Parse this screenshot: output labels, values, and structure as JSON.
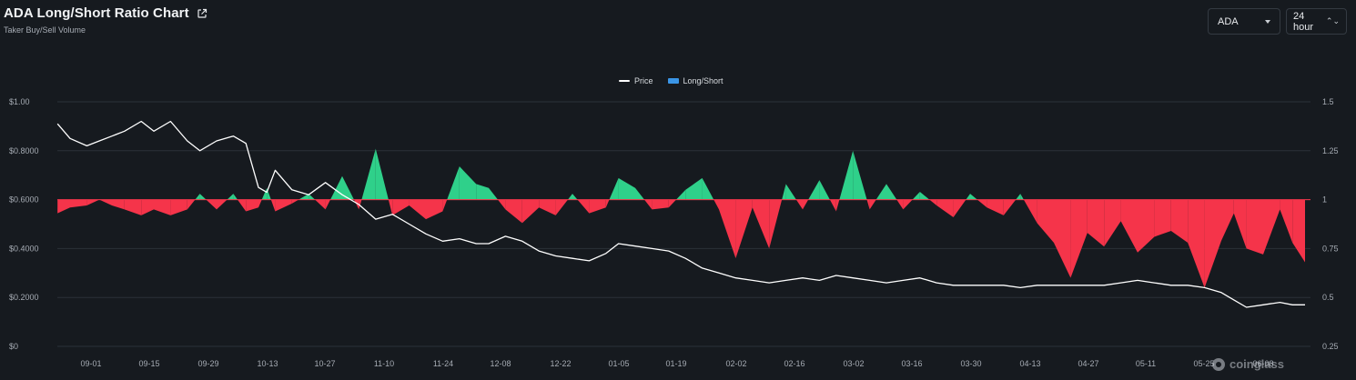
{
  "header": {
    "title": "ADA Long/Short Ratio Chart",
    "subtitle": "Taker Buy/Sell Volume",
    "external_link_icon": "external-link-icon"
  },
  "controls": {
    "coin_select": "ADA",
    "period_select": "24 hour"
  },
  "watermark": "coinglass",
  "colors": {
    "background": "#161a1f",
    "long": "#2fd08a",
    "short": "#f5344a",
    "price": "#ffffff",
    "legend_long_short": "#3a95e6",
    "grid": "#2b3138"
  },
  "chart_data": {
    "type": "area",
    "legend_position": "top-center",
    "grid": true,
    "categories": [
      "09-01",
      "09-15",
      "09-29",
      "10-13",
      "10-27",
      "11-10",
      "11-24",
      "12-08",
      "12-22",
      "01-05",
      "01-19",
      "02-02",
      "02-16",
      "03-02",
      "03-16",
      "03-30",
      "04-13",
      "04-27",
      "05-11",
      "05-25",
      "06-08"
    ],
    "y_left": {
      "ticks": [
        "$1.00",
        "$0.8000",
        "$0.6000",
        "$0.4000",
        "$0.2000",
        "$0"
      ],
      "tick_values": [
        1.0,
        0.8,
        0.6,
        0.4,
        0.2,
        0
      ],
      "range": [
        0,
        1.0
      ]
    },
    "y_right": {
      "ticks": [
        "1.5",
        "1.25",
        "1",
        "0.75",
        "0.5",
        "0.25"
      ],
      "tick_values": [
        1.5,
        1.25,
        1.0,
        0.75,
        0.5,
        0.25
      ],
      "range": [
        0.25,
        1.5
      ],
      "baseline": 1.0
    },
    "series": [
      {
        "name": "Price",
        "axis": "left",
        "type": "line",
        "points": [
          [
            "08-24",
            0.91
          ],
          [
            "08-27",
            0.85
          ],
          [
            "08-31",
            0.82
          ],
          [
            "09-03",
            0.84
          ],
          [
            "09-06",
            0.86
          ],
          [
            "09-09",
            0.88
          ],
          [
            "09-13",
            0.92
          ],
          [
            "09-16",
            0.88
          ],
          [
            "09-20",
            0.92
          ],
          [
            "09-24",
            0.84
          ],
          [
            "09-27",
            0.8
          ],
          [
            "10-01",
            0.84
          ],
          [
            "10-05",
            0.86
          ],
          [
            "10-08",
            0.83
          ],
          [
            "10-11",
            0.65
          ],
          [
            "10-13",
            0.63
          ],
          [
            "10-15",
            0.72
          ],
          [
            "10-19",
            0.64
          ],
          [
            "10-23",
            0.62
          ],
          [
            "10-27",
            0.67
          ],
          [
            "10-31",
            0.62
          ],
          [
            "11-04",
            0.58
          ],
          [
            "11-08",
            0.52
          ],
          [
            "11-12",
            0.54
          ],
          [
            "11-16",
            0.5
          ],
          [
            "11-20",
            0.46
          ],
          [
            "11-24",
            0.43
          ],
          [
            "11-28",
            0.44
          ],
          [
            "12-02",
            0.42
          ],
          [
            "12-05",
            0.42
          ],
          [
            "12-09",
            0.45
          ],
          [
            "12-13",
            0.43
          ],
          [
            "12-17",
            0.39
          ],
          [
            "12-21",
            0.37
          ],
          [
            "12-25",
            0.36
          ],
          [
            "12-29",
            0.35
          ],
          [
            "01-02",
            0.38
          ],
          [
            "01-05",
            0.42
          ],
          [
            "01-09",
            0.41
          ],
          [
            "01-13",
            0.4
          ],
          [
            "01-17",
            0.39
          ],
          [
            "01-21",
            0.36
          ],
          [
            "01-25",
            0.32
          ],
          [
            "01-29",
            0.3
          ],
          [
            "02-02",
            0.28
          ],
          [
            "02-06",
            0.27
          ],
          [
            "02-10",
            0.26
          ],
          [
            "02-14",
            0.27
          ],
          [
            "02-18",
            0.28
          ],
          [
            "02-22",
            0.27
          ],
          [
            "02-26",
            0.29
          ],
          [
            "03-02",
            0.28
          ],
          [
            "03-06",
            0.27
          ],
          [
            "03-10",
            0.26
          ],
          [
            "03-14",
            0.27
          ],
          [
            "03-18",
            0.28
          ],
          [
            "03-22",
            0.26
          ],
          [
            "03-26",
            0.25
          ],
          [
            "03-30",
            0.25
          ],
          [
            "04-03",
            0.25
          ],
          [
            "04-07",
            0.25
          ],
          [
            "04-11",
            0.24
          ],
          [
            "04-15",
            0.25
          ],
          [
            "04-19",
            0.25
          ],
          [
            "04-23",
            0.25
          ],
          [
            "04-27",
            0.25
          ],
          [
            "05-01",
            0.25
          ],
          [
            "05-05",
            0.26
          ],
          [
            "05-09",
            0.27
          ],
          [
            "05-13",
            0.26
          ],
          [
            "05-17",
            0.25
          ],
          [
            "05-21",
            0.25
          ],
          [
            "05-25",
            0.24
          ],
          [
            "05-29",
            0.22
          ],
          [
            "06-01",
            0.19
          ],
          [
            "06-04",
            0.16
          ],
          [
            "06-08",
            0.17
          ],
          [
            "06-12",
            0.18
          ],
          [
            "06-15",
            0.17
          ],
          [
            "06-18",
            0.17
          ]
        ]
      },
      {
        "name": "Long/Short",
        "axis": "right",
        "type": "area",
        "baseline": 1.0,
        "points": [
          [
            "08-24",
            0.93
          ],
          [
            "08-27",
            0.96
          ],
          [
            "08-31",
            0.97
          ],
          [
            "09-03",
            1.0
          ],
          [
            "09-06",
            0.97
          ],
          [
            "09-09",
            0.95
          ],
          [
            "09-13",
            0.92
          ],
          [
            "09-16",
            0.95
          ],
          [
            "09-20",
            0.92
          ],
          [
            "09-24",
            0.95
          ],
          [
            "09-27",
            1.03
          ],
          [
            "10-01",
            0.95
          ],
          [
            "10-05",
            1.03
          ],
          [
            "10-08",
            0.94
          ],
          [
            "10-11",
            0.96
          ],
          [
            "10-13",
            1.06
          ],
          [
            "10-15",
            0.94
          ],
          [
            "10-19",
            0.98
          ],
          [
            "10-23",
            1.03
          ],
          [
            "10-27",
            0.95
          ],
          [
            "10-31",
            1.12
          ],
          [
            "11-04",
            0.95
          ],
          [
            "11-08",
            1.26
          ],
          [
            "11-12",
            0.92
          ],
          [
            "11-16",
            0.97
          ],
          [
            "11-20",
            0.9
          ],
          [
            "11-24",
            0.94
          ],
          [
            "11-28",
            1.17
          ],
          [
            "12-02",
            1.08
          ],
          [
            "12-05",
            1.06
          ],
          [
            "12-09",
            0.95
          ],
          [
            "12-13",
            0.88
          ],
          [
            "12-17",
            0.96
          ],
          [
            "12-21",
            0.92
          ],
          [
            "12-25",
            1.03
          ],
          [
            "12-29",
            0.93
          ],
          [
            "01-02",
            0.96
          ],
          [
            "01-05",
            1.11
          ],
          [
            "01-09",
            1.06
          ],
          [
            "01-13",
            0.95
          ],
          [
            "01-17",
            0.96
          ],
          [
            "01-21",
            1.05
          ],
          [
            "01-25",
            1.11
          ],
          [
            "01-29",
            0.95
          ],
          [
            "02-02",
            0.7
          ],
          [
            "02-06",
            0.96
          ],
          [
            "02-10",
            0.75
          ],
          [
            "02-14",
            1.08
          ],
          [
            "02-18",
            0.95
          ],
          [
            "02-22",
            1.1
          ],
          [
            "02-26",
            0.94
          ],
          [
            "03-02",
            1.25
          ],
          [
            "03-06",
            0.95
          ],
          [
            "03-10",
            1.08
          ],
          [
            "03-14",
            0.95
          ],
          [
            "03-18",
            1.04
          ],
          [
            "03-22",
            0.97
          ],
          [
            "03-26",
            0.91
          ],
          [
            "03-30",
            1.03
          ],
          [
            "04-03",
            0.96
          ],
          [
            "04-07",
            0.92
          ],
          [
            "04-11",
            1.03
          ],
          [
            "04-15",
            0.88
          ],
          [
            "04-19",
            0.78
          ],
          [
            "04-23",
            0.6
          ],
          [
            "04-27",
            0.83
          ],
          [
            "05-01",
            0.76
          ],
          [
            "05-05",
            0.89
          ],
          [
            "05-09",
            0.73
          ],
          [
            "05-13",
            0.81
          ],
          [
            "05-17",
            0.84
          ],
          [
            "05-21",
            0.78
          ],
          [
            "05-25",
            0.55
          ],
          [
            "05-29",
            0.79
          ],
          [
            "06-01",
            0.93
          ],
          [
            "06-04",
            0.75
          ],
          [
            "06-08",
            0.72
          ],
          [
            "06-12",
            0.95
          ],
          [
            "06-15",
            0.78
          ],
          [
            "06-18",
            0.68
          ]
        ]
      }
    ]
  }
}
